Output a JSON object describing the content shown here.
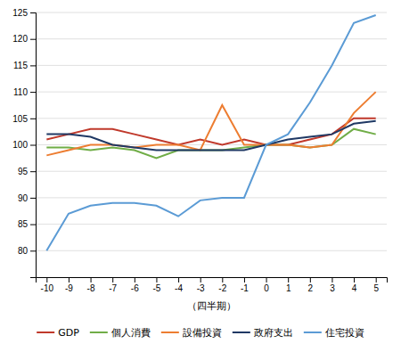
{
  "chart_data": {
    "type": "line",
    "x_label": "（四半期）",
    "x": [
      -10,
      -9,
      -8,
      -7,
      -6,
      -5,
      -4,
      -3,
      -2,
      -1,
      0,
      1,
      2,
      3,
      4,
      5
    ],
    "series": [
      {
        "name": "GDP",
        "color": "#c0392b",
        "values": [
          101,
          102,
          103,
          103,
          102,
          101,
          100,
          101,
          100,
          101,
          100,
          100,
          101,
          102,
          105,
          105
        ]
      },
      {
        "name": "個人消費",
        "color": "#70ad47",
        "values": [
          99.5,
          99.5,
          99,
          99.5,
          99,
          97.5,
          99,
          99,
          99,
          99.5,
          100,
          100,
          99.5,
          100,
          103,
          102
        ]
      },
      {
        "name": "設備投資",
        "color": "#ed7d31",
        "values": [
          98,
          99,
          100,
          100,
          99.5,
          100,
          100,
          99,
          107.5,
          100,
          100,
          100,
          99.5,
          100,
          106,
          110
        ]
      },
      {
        "name": "政府支出",
        "color": "#1f3864",
        "values": [
          102,
          102,
          101.5,
          100,
          99.5,
          99,
          99,
          99,
          99,
          99,
          100,
          101,
          101.5,
          102,
          104,
          104.5
        ]
      },
      {
        "name": "住宅投資",
        "color": "#5b9bd5",
        "values": [
          80,
          87,
          88.5,
          89,
          89,
          88.5,
          86.5,
          89.5,
          90,
          90,
          100,
          102,
          108,
          115,
          123,
          124.5
        ]
      }
    ],
    "xlim": [
      -10.5,
      5.5
    ],
    "xticks": [
      -10,
      -9,
      -8,
      -7,
      -6,
      -5,
      -4,
      -3,
      -2,
      -1,
      0,
      1,
      2,
      3,
      4,
      5
    ],
    "ylim": [
      75,
      125
    ],
    "yticks": [
      80,
      85,
      90,
      95,
      100,
      105,
      110,
      115,
      120,
      125
    ],
    "grid": true,
    "legend": "bottom"
  }
}
